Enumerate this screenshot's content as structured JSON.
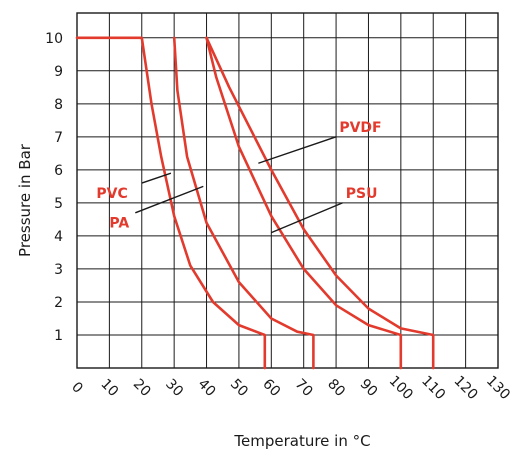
{
  "chart_data": {
    "type": "line",
    "xlabel": "Temperature in °C",
    "ylabel": "Pressure in Bar",
    "xlim": [
      0,
      130
    ],
    "ylim": [
      0,
      10.75
    ],
    "grid": true,
    "x_ticks": [
      "0",
      "10",
      "20",
      "30",
      "40",
      "50",
      "60",
      "70",
      "80",
      "90",
      "100",
      "110",
      "120",
      "130"
    ],
    "y_ticks": [
      "1",
      "2",
      "3",
      "4",
      "5",
      "6",
      "7",
      "8",
      "9",
      "10"
    ],
    "line_color": "#e23b2e",
    "series": [
      {
        "name": "PVC",
        "points": [
          [
            0,
            10
          ],
          [
            20,
            10
          ],
          [
            23,
            8
          ],
          [
            26,
            6.4
          ],
          [
            30,
            4.6
          ],
          [
            35,
            3.1
          ],
          [
            42,
            2
          ],
          [
            50,
            1.3
          ],
          [
            58,
            1
          ],
          [
            58,
            0
          ]
        ]
      },
      {
        "name": "PA",
        "points": [
          [
            30,
            10
          ],
          [
            31,
            8.4
          ],
          [
            34,
            6.4
          ],
          [
            40,
            4.4
          ],
          [
            50,
            2.6
          ],
          [
            60,
            1.5
          ],
          [
            68,
            1.1
          ],
          [
            73,
            1
          ],
          [
            73,
            0
          ]
        ]
      },
      {
        "name": "PSU",
        "points": [
          [
            40,
            10
          ],
          [
            43,
            8.8
          ],
          [
            50,
            6.7
          ],
          [
            60,
            4.6
          ],
          [
            70,
            3
          ],
          [
            80,
            1.9
          ],
          [
            90,
            1.3
          ],
          [
            100,
            1
          ],
          [
            100,
            0
          ]
        ]
      },
      {
        "name": "PVDF",
        "points": [
          [
            40,
            10
          ],
          [
            47,
            8.5
          ],
          [
            60,
            6
          ],
          [
            70,
            4.2
          ],
          [
            80,
            2.8
          ],
          [
            90,
            1.8
          ],
          [
            100,
            1.2
          ],
          [
            110,
            1
          ],
          [
            110,
            0
          ]
        ]
      }
    ],
    "labels": [
      {
        "text": "PVC",
        "at": [
          6,
          5.3
        ],
        "leader": [
          [
            20,
            5.6
          ],
          [
            29,
            5.9
          ]
        ]
      },
      {
        "text": "PA",
        "at": [
          10,
          4.4
        ],
        "leader": [
          [
            18,
            4.7
          ],
          [
            39,
            5.5
          ]
        ]
      },
      {
        "text": "PSU",
        "at": [
          83,
          5.3
        ],
        "leader": [
          [
            82,
            5
          ],
          [
            60,
            4.1
          ]
        ]
      },
      {
        "text": "PVDF",
        "at": [
          81,
          7.3
        ],
        "leader": [
          [
            80,
            7
          ],
          [
            56,
            6.2
          ]
        ]
      }
    ]
  }
}
